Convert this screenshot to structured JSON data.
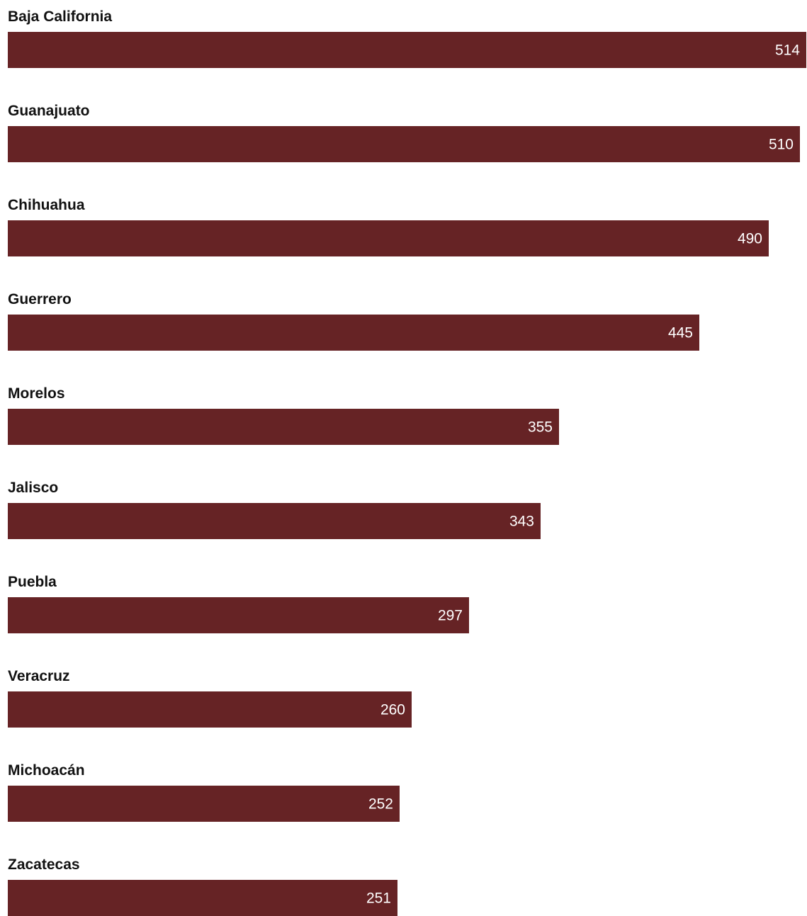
{
  "chart_data": {
    "type": "bar",
    "orientation": "horizontal",
    "categories": [
      "Baja California",
      "Guanajuato",
      "Chihuahua",
      "Guerrero",
      "Morelos",
      "Jalisco",
      "Puebla",
      "Veracruz",
      "Michoacán",
      "Zacatecas"
    ],
    "values": [
      514,
      510,
      490,
      445,
      355,
      343,
      297,
      260,
      252,
      251
    ],
    "value_labels": [
      "514",
      "510",
      "490",
      "445",
      "355",
      "343",
      "297",
      "260",
      "252",
      "251"
    ],
    "xlim": [
      0,
      514
    ],
    "grid": false,
    "legend": "none",
    "bar_color": "#662325",
    "label_color": "#111111",
    "value_label_color": "#ffffff"
  }
}
